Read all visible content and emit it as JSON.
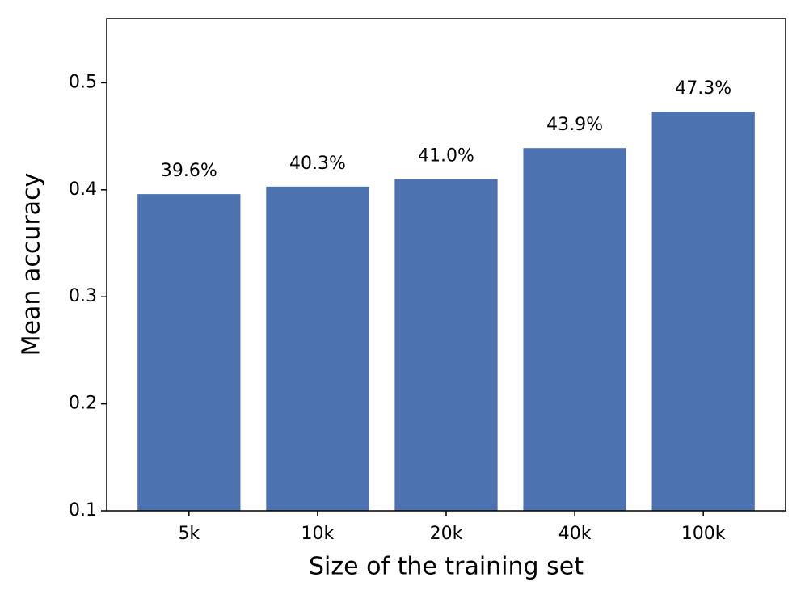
{
  "chart_data": {
    "type": "bar",
    "x_label": "Size of the training set",
    "y_label": "Mean accuracy",
    "categories": [
      "5k",
      "10k",
      "20k",
      "40k",
      "100k"
    ],
    "values": [
      0.396,
      0.403,
      0.41,
      0.439,
      0.473
    ],
    "value_labels": [
      "39.6%",
      "40.3%",
      "41.0%",
      "43.9%",
      "47.3%"
    ],
    "color": "#4c72b0",
    "ylim": [
      0.1,
      0.56
    ],
    "yticks": [
      0.1,
      0.2,
      0.3,
      0.4,
      0.5
    ],
    "grid": false
  }
}
